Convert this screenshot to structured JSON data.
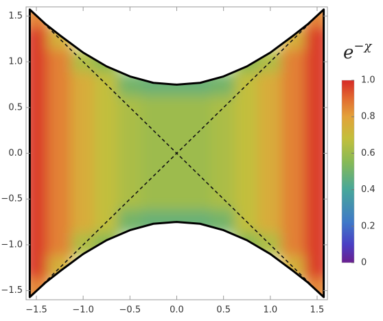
{
  "chart_data": {
    "type": "density",
    "x": [
      -1.5,
      -1.25,
      -1,
      -0.75,
      -0.5,
      -0.25,
      0,
      0.25,
      0.5,
      0.75,
      1,
      1.25,
      1.5
    ],
    "y": [
      1.5,
      1.25,
      1,
      0.75,
      0.5,
      0.25,
      0,
      -0.25,
      -0.5,
      -0.75,
      -1,
      -1.25,
      -1.5
    ],
    "z": [
      [
        0.85,
        null,
        null,
        null,
        null,
        null,
        null,
        null,
        null,
        null,
        null,
        null,
        0.85
      ],
      [
        0.97,
        0.74,
        null,
        null,
        null,
        null,
        null,
        null,
        null,
        null,
        null,
        0.74,
        0.97
      ],
      [
        0.97,
        0.86,
        0.64,
        0.56,
        null,
        null,
        null,
        null,
        null,
        0.56,
        0.64,
        0.86,
        0.97
      ],
      [
        0.97,
        0.86,
        0.76,
        0.68,
        0.51,
        0.48,
        0.48,
        0.48,
        0.51,
        0.68,
        0.76,
        0.86,
        0.97
      ],
      [
        0.97,
        0.86,
        0.76,
        0.68,
        0.63,
        0.6,
        0.6,
        0.6,
        0.63,
        0.68,
        0.76,
        0.86,
        0.97
      ],
      [
        0.97,
        0.86,
        0.76,
        0.68,
        0.63,
        0.6,
        0.6,
        0.6,
        0.63,
        0.68,
        0.76,
        0.86,
        0.97
      ],
      [
        0.97,
        0.86,
        0.76,
        0.68,
        0.63,
        0.6,
        0.6,
        0.6,
        0.63,
        0.68,
        0.76,
        0.86,
        0.97
      ],
      [
        0.97,
        0.86,
        0.76,
        0.68,
        0.63,
        0.6,
        0.6,
        0.6,
        0.63,
        0.68,
        0.76,
        0.86,
        0.97
      ],
      [
        0.97,
        0.86,
        0.76,
        0.68,
        0.63,
        0.6,
        0.6,
        0.6,
        0.63,
        0.68,
        0.76,
        0.86,
        0.97
      ],
      [
        0.97,
        0.86,
        0.76,
        0.68,
        0.51,
        0.48,
        0.48,
        0.48,
        0.51,
        0.68,
        0.76,
        0.86,
        0.97
      ],
      [
        0.97,
        0.86,
        0.64,
        0.56,
        null,
        null,
        null,
        null,
        null,
        0.56,
        0.64,
        0.86,
        0.97
      ],
      [
        0.97,
        0.74,
        null,
        null,
        null,
        null,
        null,
        null,
        null,
        null,
        null,
        0.74,
        0.97
      ],
      [
        0.85,
        null,
        null,
        null,
        null,
        null,
        null,
        null,
        null,
        null,
        null,
        null,
        0.85
      ]
    ],
    "outline": {
      "x": [
        -1.5708,
        -1.4,
        -1.25,
        -1,
        -0.75,
        -0.5,
        -0.25,
        0,
        0.25,
        0.5,
        0.75,
        1,
        1.25,
        1.4,
        1.5708,
        1.5708,
        1.4,
        1.25,
        1,
        0.75,
        0.5,
        0.25,
        0,
        -0.25,
        -0.5,
        -0.75,
        -1,
        -1.25,
        -1.4,
        -1.5708
      ],
      "y": [
        1.5708,
        1.41,
        1.29,
        1.1,
        0.95,
        0.84,
        0.77,
        0.75,
        0.77,
        0.84,
        0.95,
        1.1,
        1.29,
        1.41,
        1.5708,
        -1.5708,
        -1.41,
        -1.29,
        -1.1,
        -0.95,
        -0.84,
        -0.77,
        -0.75,
        -0.77,
        -0.84,
        -0.95,
        -1.1,
        -1.29,
        -1.41,
        -1.5708
      ]
    },
    "diagonals": [
      {
        "x": [
          -1.5708,
          1.5708
        ],
        "y": [
          -1.5708,
          1.5708
        ]
      },
      {
        "x": [
          -1.5708,
          1.5708
        ],
        "y": [
          1.5708,
          -1.5708
        ]
      }
    ],
    "xlim": [
      -1.61,
      1.61
    ],
    "ylim": [
      -1.6,
      1.6
    ],
    "xticks": [
      {
        "value": -1.5,
        "label": "−1.5"
      },
      {
        "value": -1,
        "label": "−1.0"
      },
      {
        "value": -0.5,
        "label": "−0.5"
      },
      {
        "value": 0,
        "label": "0.0"
      },
      0.5,
      {
        "value": 1,
        "label": "1.0"
      },
      1.5
    ],
    "yticks": [
      {
        "value": -1.5,
        "label": "−1.5"
      },
      {
        "value": -1,
        "label": "−1.0"
      },
      {
        "value": -0.5,
        "label": "−0.5"
      },
      {
        "value": 0,
        "label": "0.0"
      },
      0.5,
      {
        "value": 1,
        "label": "1.0"
      },
      1.5
    ],
    "colorbar_label": {
      "base": "e",
      "exponent": "−χ"
    },
    "colorbar_lim": [
      0,
      1
    ],
    "colorbar_ticks": [
      0,
      0.2,
      0.4,
      0.6,
      0.8,
      {
        "value": 1,
        "label": "1.0"
      }
    ],
    "colormap": [
      {
        "value": 0,
        "color": "#6a1f8f"
      },
      {
        "value": 0.1,
        "color": "#4a3fc4"
      },
      {
        "value": 0.22,
        "color": "#3f78c8"
      },
      {
        "value": 0.4,
        "color": "#48a79a"
      },
      {
        "value": 0.55,
        "color": "#86b957"
      },
      {
        "value": 0.68,
        "color": "#c2bf3c"
      },
      {
        "value": 0.8,
        "color": "#e3a23a"
      },
      {
        "value": 0.9,
        "color": "#e26b30"
      },
      {
        "value": 1,
        "color": "#d62a26"
      }
    ]
  }
}
